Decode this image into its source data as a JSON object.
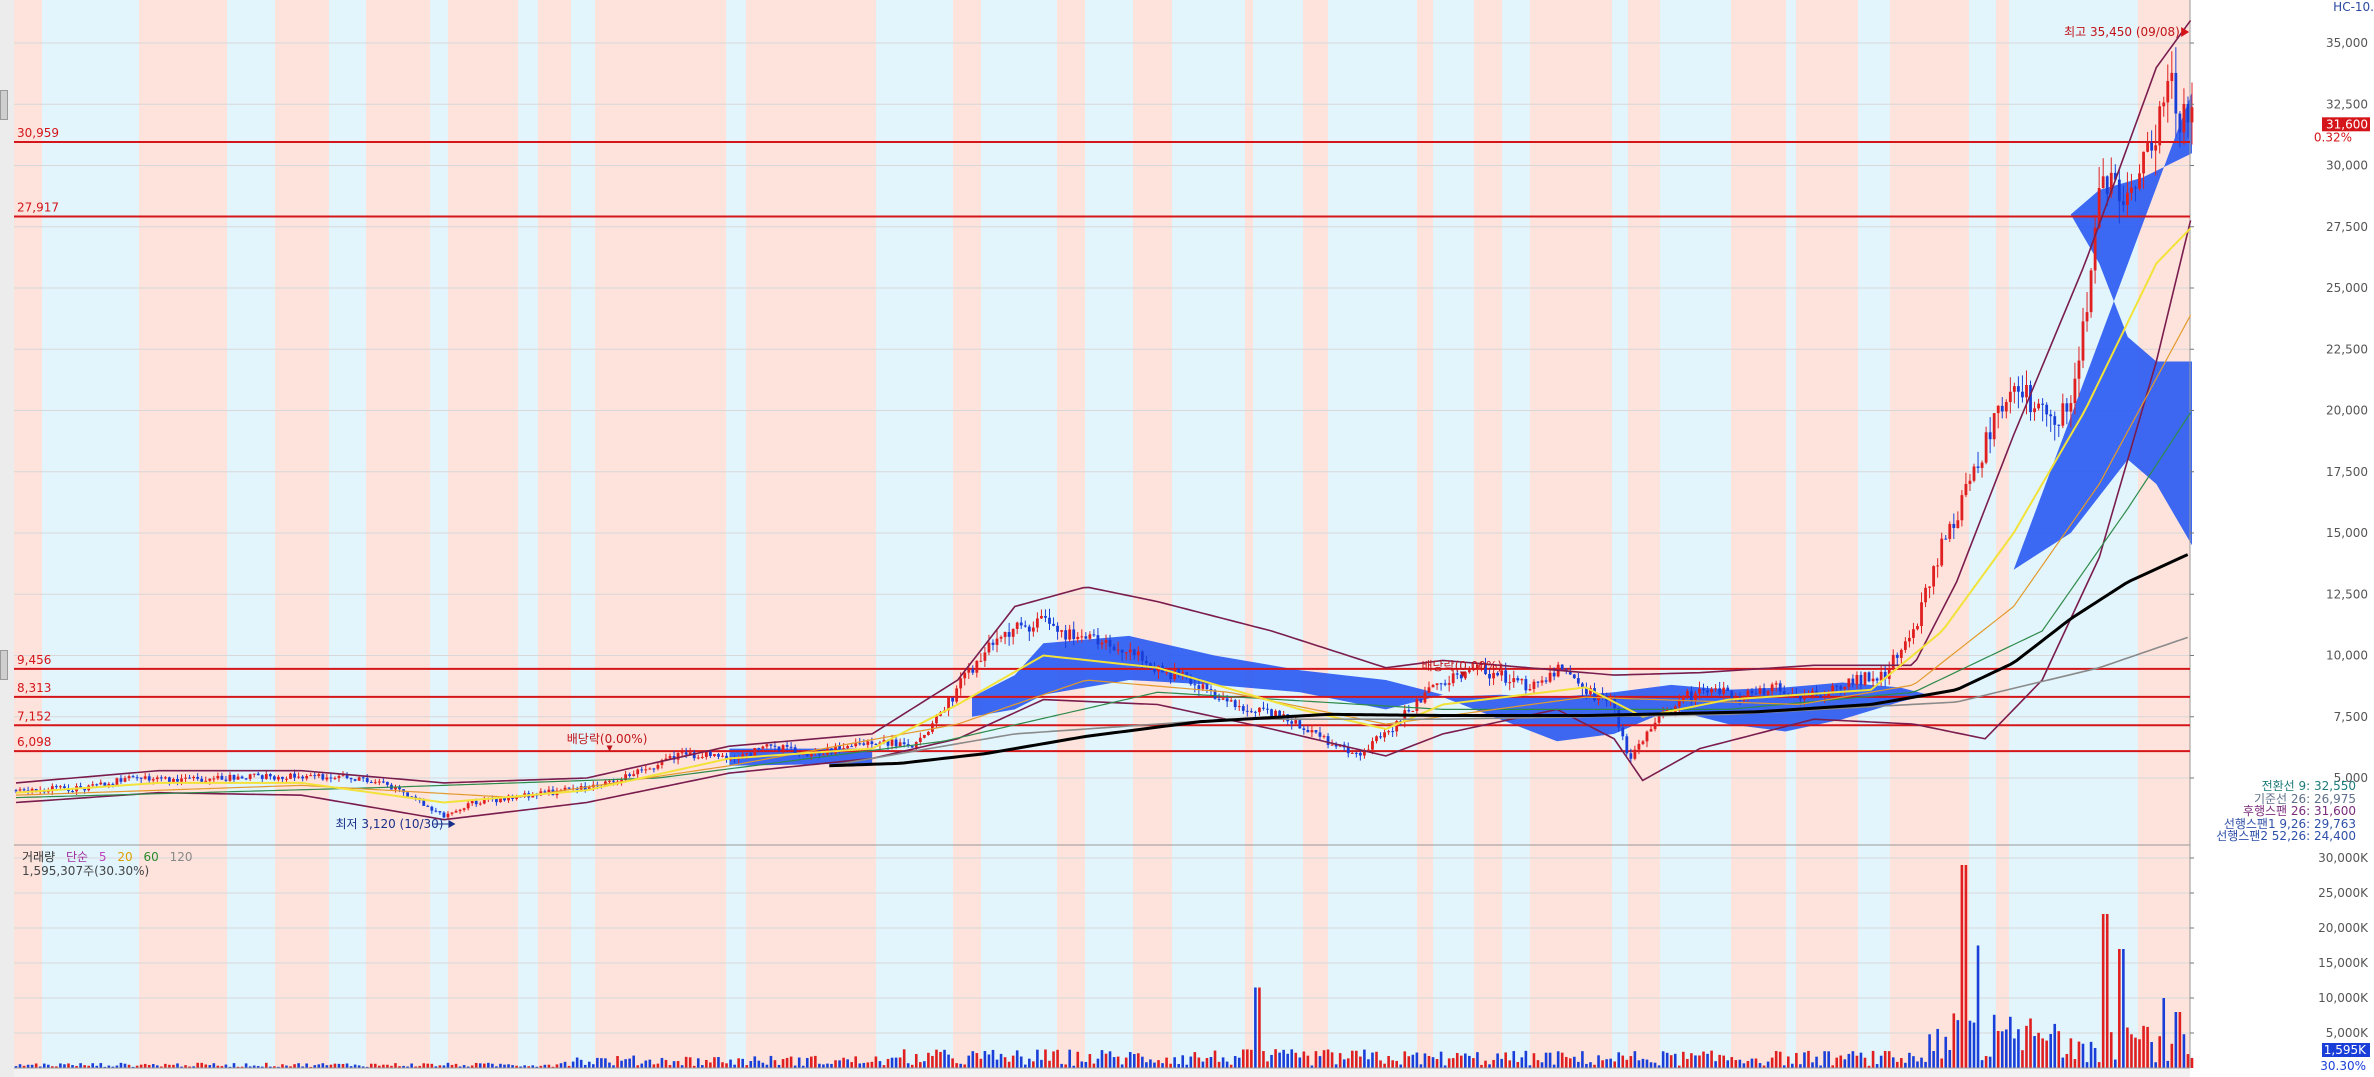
{
  "corner_label": "HC-10.",
  "chart_data": [
    {
      "type": "candlestick",
      "title": "",
      "ylim": [
        3000,
        36000
      ],
      "y_ticks": [
        "35,000",
        "32,500",
        "30,000",
        "27,500",
        "25,000",
        "22,500",
        "20,000",
        "17,500",
        "15,000",
        "12,500",
        "10,000",
        "7,500",
        "5,000"
      ],
      "y_tick_values": [
        35000,
        32500,
        30000,
        27500,
        25000,
        22500,
        20000,
        17500,
        15000,
        12500,
        10000,
        7500,
        5000
      ],
      "current_price_label": "31,600",
      "current_change_label": "0.32%",
      "horizontal_levels": [
        {
          "label": "30,959",
          "value": 30959
        },
        {
          "label": "27,917",
          "value": 27917
        },
        {
          "label": "9,456",
          "value": 9456
        },
        {
          "label": "8,313",
          "value": 8313
        },
        {
          "label": "7,152",
          "value": 7152
        },
        {
          "label": "6,098",
          "value": 6098
        }
      ],
      "annotations": {
        "high": "최고 35,450 (09/08)",
        "low": "최저 3,120 (10/30)",
        "dividend_1": "배당락(0.00%)",
        "dividend_2": "배당락(0.00%)"
      },
      "price_path": [
        [
          0,
          4500
        ],
        [
          5,
          4600
        ],
        [
          8,
          5000
        ],
        [
          12,
          4950
        ],
        [
          16,
          5050
        ],
        [
          20,
          5100
        ],
        [
          25,
          4900
        ],
        [
          28,
          4200
        ],
        [
          30,
          3400
        ],
        [
          32,
          4000
        ],
        [
          36,
          4300
        ],
        [
          40,
          4600
        ],
        [
          44,
          5300
        ],
        [
          46,
          5900
        ],
        [
          48,
          6000
        ],
        [
          50,
          5800
        ],
        [
          53,
          6300
        ],
        [
          56,
          6000
        ],
        [
          60,
          6500
        ],
        [
          63,
          6300
        ],
        [
          65,
          7800
        ],
        [
          67,
          9500
        ],
        [
          69,
          10800
        ],
        [
          72,
          11500
        ],
        [
          74,
          10800
        ],
        [
          76,
          10500
        ],
        [
          78,
          10200
        ],
        [
          80,
          9400
        ],
        [
          82,
          9100
        ],
        [
          84,
          8300
        ],
        [
          86,
          7800
        ],
        [
          88,
          7600
        ],
        [
          90,
          7200
        ],
        [
          92,
          6500
        ],
        [
          94,
          6000
        ],
        [
          96,
          6800
        ],
        [
          98,
          8000
        ],
        [
          100,
          9000
        ],
        [
          102,
          9500
        ],
        [
          104,
          9200
        ],
        [
          106,
          8700
        ],
        [
          108,
          9400
        ],
        [
          110,
          8600
        ],
        [
          112,
          8000
        ],
        [
          113,
          5700
        ],
        [
          115,
          7300
        ],
        [
          117,
          8300
        ],
        [
          119,
          8600
        ],
        [
          121,
          8300
        ],
        [
          123,
          8700
        ],
        [
          125,
          8400
        ],
        [
          127,
          8500
        ],
        [
          129,
          9000
        ],
        [
          131,
          9300
        ],
        [
          133,
          11000
        ],
        [
          135,
          14500
        ],
        [
          137,
          17000
        ],
        [
          139,
          20500
        ],
        [
          141,
          20500
        ],
        [
          143,
          19300
        ],
        [
          144,
          20800
        ],
        [
          145,
          24000
        ],
        [
          146,
          28500
        ],
        [
          147,
          29500
        ],
        [
          148,
          28500
        ],
        [
          149,
          30500
        ],
        [
          150,
          31200
        ],
        [
          151,
          33000
        ],
        [
          152,
          31800
        ],
        [
          152.5,
          31600
        ]
      ],
      "ma_yellow_path": [
        [
          0,
          4400
        ],
        [
          10,
          4800
        ],
        [
          20,
          4800
        ],
        [
          30,
          4000
        ],
        [
          40,
          4500
        ],
        [
          50,
          5800
        ],
        [
          60,
          6200
        ],
        [
          66,
          8000
        ],
        [
          72,
          10000
        ],
        [
          80,
          9500
        ],
        [
          90,
          7800
        ],
        [
          96,
          7000
        ],
        [
          100,
          8000
        ],
        [
          110,
          8700
        ],
        [
          114,
          7500
        ],
        [
          120,
          8200
        ],
        [
          130,
          8600
        ],
        [
          135,
          11000
        ],
        [
          140,
          15000
        ],
        [
          145,
          20000
        ],
        [
          150,
          26000
        ],
        [
          152.5,
          27500
        ]
      ],
      "ma_orange_path": [
        [
          0,
          4300
        ],
        [
          20,
          4700
        ],
        [
          35,
          4200
        ],
        [
          50,
          5500
        ],
        [
          66,
          7200
        ],
        [
          75,
          9000
        ],
        [
          85,
          8500
        ],
        [
          96,
          7200
        ],
        [
          110,
          8300
        ],
        [
          125,
          8000
        ],
        [
          133,
          8800
        ],
        [
          140,
          12000
        ],
        [
          146,
          17000
        ],
        [
          152.5,
          24000
        ]
      ],
      "ma_green_path": [
        [
          0,
          4200
        ],
        [
          25,
          4600
        ],
        [
          45,
          5000
        ],
        [
          65,
          6500
        ],
        [
          80,
          8500
        ],
        [
          100,
          7800
        ],
        [
          120,
          7800
        ],
        [
          133,
          8500
        ],
        [
          142,
          11000
        ],
        [
          148,
          16000
        ],
        [
          152.5,
          20000
        ]
      ],
      "ma_black_path": [
        [
          57,
          5500
        ],
        [
          62,
          5600
        ],
        [
          68,
          6000
        ],
        [
          75,
          6700
        ],
        [
          83,
          7300
        ],
        [
          92,
          7600
        ],
        [
          100,
          7550
        ],
        [
          110,
          7550
        ],
        [
          122,
          7700
        ],
        [
          130,
          8000
        ],
        [
          136,
          8600
        ],
        [
          140,
          9700
        ],
        [
          144,
          11500
        ],
        [
          148,
          13000
        ],
        [
          152.5,
          14200
        ]
      ],
      "ma_gray_path": [
        [
          57,
          5500
        ],
        [
          70,
          6800
        ],
        [
          85,
          7400
        ],
        [
          100,
          7400
        ],
        [
          120,
          7600
        ],
        [
          136,
          8100
        ],
        [
          146,
          9500
        ],
        [
          152.5,
          10800
        ]
      ],
      "bollinger_upper_path": [
        [
          0,
          4800
        ],
        [
          10,
          5300
        ],
        [
          20,
          5300
        ],
        [
          30,
          4800
        ],
        [
          40,
          5000
        ],
        [
          50,
          6300
        ],
        [
          60,
          6800
        ],
        [
          66,
          9000
        ],
        [
          70,
          12000
        ],
        [
          75,
          12800
        ],
        [
          80,
          12200
        ],
        [
          88,
          11000
        ],
        [
          96,
          9500
        ],
        [
          100,
          9800
        ],
        [
          106,
          9500
        ],
        [
          112,
          9200
        ],
        [
          118,
          9300
        ],
        [
          126,
          9600
        ],
        [
          133,
          9600
        ],
        [
          136,
          13000
        ],
        [
          140,
          19000
        ],
        [
          145,
          26000
        ],
        [
          150,
          34000
        ],
        [
          152.5,
          36000
        ]
      ],
      "bollinger_lower_path": [
        [
          0,
          4000
        ],
        [
          10,
          4400
        ],
        [
          20,
          4300
        ],
        [
          30,
          3300
        ],
        [
          40,
          4000
        ],
        [
          50,
          5200
        ],
        [
          60,
          5800
        ],
        [
          66,
          6600
        ],
        [
          72,
          8200
        ],
        [
          80,
          8000
        ],
        [
          88,
          7000
        ],
        [
          96,
          5900
        ],
        [
          100,
          6800
        ],
        [
          108,
          7800
        ],
        [
          112,
          6600
        ],
        [
          114,
          4900
        ],
        [
          118,
          6200
        ],
        [
          126,
          7400
        ],
        [
          133,
          7200
        ],
        [
          138,
          6600
        ],
        [
          142,
          9000
        ],
        [
          146,
          14000
        ],
        [
          150,
          22000
        ],
        [
          152.5,
          28000
        ]
      ],
      "ichimoku_cloud": [
        [
          [
            50,
            5500
          ],
          [
            50,
            6200
          ],
          [
            60,
            6200
          ],
          [
            60,
            5600
          ]
        ],
        [
          [
            67,
            7500
          ],
          [
            67,
            8300
          ],
          [
            70,
            9200
          ],
          [
            72,
            10500
          ],
          [
            78,
            10800
          ],
          [
            84,
            10000
          ],
          [
            90,
            9400
          ],
          [
            96,
            9000
          ],
          [
            100,
            8400
          ],
          [
            96,
            7800
          ],
          [
            90,
            8500
          ],
          [
            84,
            8800
          ],
          [
            78,
            9000
          ],
          [
            72,
            8400
          ],
          [
            70,
            7800
          ]
        ],
        [
          [
            100,
            8300
          ],
          [
            104,
            7400
          ],
          [
            108,
            6500
          ],
          [
            112,
            6800
          ],
          [
            116,
            7800
          ],
          [
            120,
            7200
          ],
          [
            124,
            6900
          ],
          [
            128,
            7400
          ],
          [
            132,
            8100
          ],
          [
            134,
            8400
          ],
          [
            132,
            8700
          ],
          [
            128,
            8900
          ],
          [
            124,
            8700
          ],
          [
            120,
            8600
          ],
          [
            116,
            8800
          ],
          [
            112,
            8500
          ],
          [
            108,
            8300
          ],
          [
            104,
            8400
          ]
        ],
        [
          [
            140,
            13500
          ],
          [
            144,
            15000
          ],
          [
            148,
            18000
          ],
          [
            150,
            17000
          ],
          [
            152.5,
            14500
          ],
          [
            152.5,
            22000
          ],
          [
            150,
            22000
          ],
          [
            148,
            23000
          ],
          [
            146,
            26000
          ],
          [
            144,
            28000
          ],
          [
            146,
            29000
          ],
          [
            149,
            29500
          ],
          [
            152.5,
            30500
          ],
          [
            152.5,
            33000
          ]
        ]
      ],
      "current_label_positions": {}
    },
    {
      "type": "bar",
      "title": "거래량",
      "legend": [
        "거래량",
        "단순",
        "5",
        "20",
        "60",
        "120"
      ],
      "ylim": [
        0,
        30000
      ],
      "y_ticks": [
        "30,000K",
        "25,000K",
        "20,000K",
        "15,000K",
        "10,000K",
        "5,000K"
      ],
      "y_tick_values": [
        30000,
        25000,
        20000,
        15000,
        10000,
        5000
      ],
      "current_volume_label": "1,595K",
      "bottom_label": "30.30%",
      "summary": "1,595,307주(30.30%)",
      "spikes": [
        {
          "x": 87,
          "value": 11500
        },
        {
          "x": 136.5,
          "value": 29000
        },
        {
          "x": 137.5,
          "value": 17500
        },
        {
          "x": 146.5,
          "value": 22000
        },
        {
          "x": 147.5,
          "value": 17000
        },
        {
          "x": 150.5,
          "value": 10000
        },
        {
          "x": 151.5,
          "value": 8000
        }
      ]
    }
  ],
  "ichimoku_legend": [
    {
      "label": "전환선 9: 32,550",
      "color": "#1f7a7a"
    },
    {
      "label": "기준선 26: 26,975",
      "color": "#5f6f8a"
    },
    {
      "label": "후행스팬 26: 31,600",
      "color": "#7a2b7a"
    },
    {
      "label": "선행스팬1 9,26: 29,763",
      "color": "#2f4fa8"
    },
    {
      "label": "선행스팬2 52,26: 24,400",
      "color": "#2f4fa8"
    }
  ],
  "colors": {
    "up": "#e02020",
    "down": "#1a3fd8",
    "level_line": "#d4161a",
    "shade_red": "#fde3dc",
    "shade_blue": "#e2f5fc",
    "cloud": "#2d5cf2"
  }
}
